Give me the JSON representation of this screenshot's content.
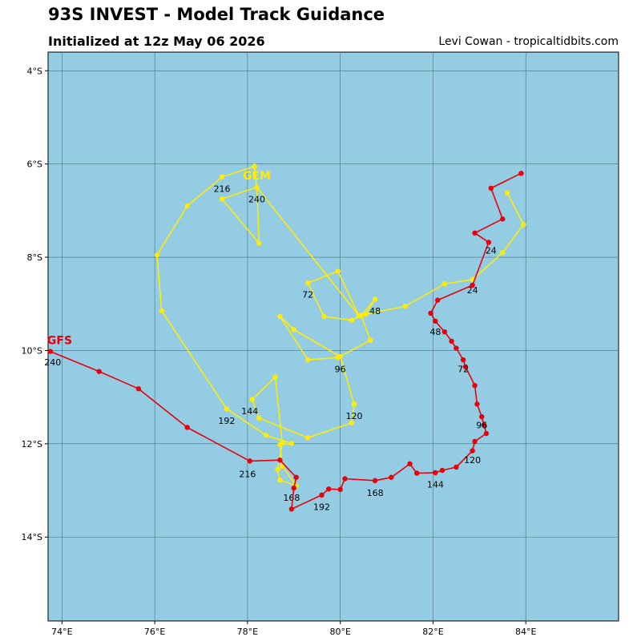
{
  "header": {
    "title": "93S INVEST - Model Track Guidance",
    "subtitle": "Initialized at 12z May 06 2026",
    "credit": "Levi Cowan - tropicaltidbits.com"
  },
  "map": {
    "lon_range": [
      73.7,
      86.0
    ],
    "lat_range": [
      -3.6,
      -15.8
    ],
    "lon_ticks": [
      74,
      76,
      78,
      80,
      82,
      84
    ],
    "lon_tick_labels": [
      "74°E",
      "76°E",
      "78°E",
      "80°E",
      "82°E",
      "84°E"
    ],
    "lat_ticks": [
      -4,
      -6,
      -8,
      -10,
      -12,
      -14
    ],
    "lat_tick_labels": [
      "4°S",
      "6°S",
      "8°S",
      "10°S",
      "12°S",
      "14°S"
    ],
    "ocean_color": "#94cde3",
    "grid_color": "#4a6f7c"
  },
  "chart_data": {
    "type": "scatter",
    "grid": true,
    "series": [
      {
        "name": "GFS",
        "color": "#e8000b",
        "points": [
          [
            83.9,
            -6.2
          ],
          [
            83.25,
            -6.52
          ],
          [
            83.5,
            -7.18
          ],
          [
            82.9,
            -7.48
          ],
          [
            83.2,
            -7.68
          ],
          [
            82.85,
            -8.6
          ],
          [
            82.1,
            -8.92
          ],
          [
            81.95,
            -9.2
          ],
          [
            82.05,
            -9.37
          ],
          [
            82.25,
            -9.6
          ],
          [
            82.4,
            -9.8
          ],
          [
            82.5,
            -9.95
          ],
          [
            82.65,
            -10.2
          ],
          [
            82.7,
            -10.35
          ],
          [
            82.9,
            -10.75
          ],
          [
            82.95,
            -11.15
          ],
          [
            83.05,
            -11.42
          ],
          [
            83.1,
            -11.6
          ],
          [
            83.15,
            -11.78
          ],
          [
            82.9,
            -11.95
          ],
          [
            82.85,
            -12.15
          ],
          [
            82.5,
            -12.5
          ],
          [
            82.2,
            -12.57
          ],
          [
            82.05,
            -12.62
          ],
          [
            81.65,
            -12.63
          ],
          [
            81.5,
            -12.43
          ],
          [
            81.1,
            -12.72
          ],
          [
            80.75,
            -12.79
          ],
          [
            80.1,
            -12.75
          ],
          [
            80.0,
            -12.98
          ],
          [
            79.75,
            -12.97
          ],
          [
            79.6,
            -13.1
          ],
          [
            78.95,
            -13.4
          ],
          [
            79.0,
            -12.95
          ],
          [
            79.05,
            -12.72
          ],
          [
            78.7,
            -12.35
          ],
          [
            78.05,
            -12.37
          ],
          [
            76.7,
            -11.65
          ],
          [
            75.65,
            -10.82
          ],
          [
            74.8,
            -10.45
          ],
          [
            73.75,
            -10.02
          ]
        ],
        "labels": [
          {
            "text": "24",
            "lon": 83.25,
            "lat": -7.85
          },
          {
            "text": "48",
            "lon": 82.05,
            "lat": -9.6
          },
          {
            "text": "72",
            "lon": 82.65,
            "lat": -10.4
          },
          {
            "text": "96",
            "lon": 83.05,
            "lat": -11.6
          },
          {
            "text": "120",
            "lon": 82.85,
            "lat": -12.35
          },
          {
            "text": "144",
            "lon": 82.05,
            "lat": -12.87
          },
          {
            "text": "168",
            "lon": 80.75,
            "lat": -13.05
          },
          {
            "text": "192",
            "lon": 79.6,
            "lat": -13.35
          },
          {
            "text": "216",
            "lon": 78.0,
            "lat": -12.65
          },
          {
            "text": "240",
            "lon": 73.8,
            "lat": -10.25
          }
        ],
        "model_label": {
          "text": "GFS",
          "lon": 73.95,
          "lat": -9.78
        }
      },
      {
        "name": "GEM",
        "color": "#ffeb0a",
        "points": [
          [
            83.6,
            -6.62
          ],
          [
            83.95,
            -7.3
          ],
          [
            83.5,
            -7.9
          ],
          [
            82.85,
            -8.48
          ],
          [
            82.25,
            -8.57
          ],
          [
            81.4,
            -9.05
          ],
          [
            80.55,
            -9.22
          ],
          [
            80.75,
            -8.9
          ],
          [
            80.45,
            -9.25
          ],
          [
            80.65,
            -9.78
          ],
          [
            79.95,
            -10.15
          ],
          [
            79.3,
            -10.2
          ],
          [
            78.7,
            -9.27
          ],
          [
            79.0,
            -9.55
          ],
          [
            80.0,
            -10.13
          ],
          [
            80.3,
            -11.15
          ],
          [
            80.25,
            -11.55
          ],
          [
            79.3,
            -11.87
          ],
          [
            78.25,
            -11.45
          ],
          [
            78.1,
            -11.05
          ],
          [
            78.6,
            -10.57
          ],
          [
            78.75,
            -11.98
          ],
          [
            78.65,
            -12.55
          ],
          [
            78.7,
            -12.78
          ],
          [
            79.05,
            -12.9
          ],
          [
            78.75,
            -12.48
          ],
          [
            78.7,
            -12.02
          ],
          [
            78.95,
            -11.99
          ],
          [
            78.4,
            -11.82
          ],
          [
            77.55,
            -11.25
          ],
          [
            76.15,
            -9.15
          ],
          [
            76.05,
            -7.95
          ],
          [
            76.7,
            -6.9
          ],
          [
            77.45,
            -6.28
          ],
          [
            78.15,
            -6.05
          ],
          [
            78.2,
            -6.5
          ],
          [
            77.45,
            -6.75
          ],
          [
            78.25,
            -7.7
          ],
          [
            78.2,
            -6.5
          ],
          [
            80.4,
            -9.25
          ],
          [
            79.95,
            -8.3
          ],
          [
            79.3,
            -8.55
          ],
          [
            79.65,
            -9.27
          ],
          [
            80.25,
            -9.35
          ],
          [
            80.45,
            -9.25
          ]
        ],
        "labels": [
          {
            "text": "24",
            "lon": 82.85,
            "lat": -8.7
          },
          {
            "text": "48",
            "lon": 80.75,
            "lat": -9.15
          },
          {
            "text": "72",
            "lon": 79.3,
            "lat": -8.8
          },
          {
            "text": "96",
            "lon": 80.0,
            "lat": -10.4
          },
          {
            "text": "120",
            "lon": 80.3,
            "lat": -11.4
          },
          {
            "text": "144",
            "lon": 78.05,
            "lat": -11.3
          },
          {
            "text": "168",
            "lon": 78.95,
            "lat": -13.15
          },
          {
            "text": "192",
            "lon": 77.55,
            "lat": -11.5
          },
          {
            "text": "216",
            "lon": 77.45,
            "lat": -6.53
          },
          {
            "text": "240",
            "lon": 78.2,
            "lat": -6.75
          }
        ],
        "model_label": {
          "text": "GEM",
          "lon": 78.2,
          "lat": -6.25
        }
      }
    ]
  }
}
